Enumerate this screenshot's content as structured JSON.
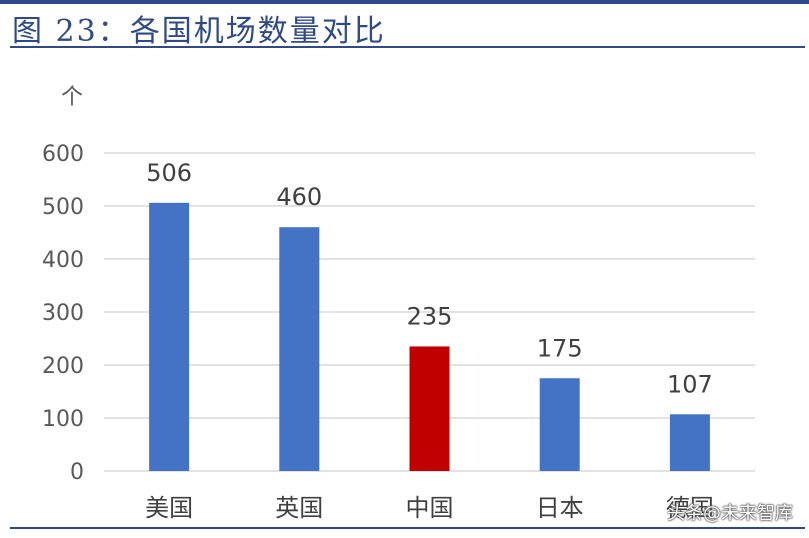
{
  "figure": {
    "title": "图 23：各国机场数量对比",
    "watermark": "头条@未来智库"
  },
  "chart_data": {
    "type": "bar",
    "title": "",
    "unit_label": "个",
    "xlabel": "",
    "ylabel": "",
    "categories": [
      "美国",
      "英国",
      "中国",
      "日本",
      "德国"
    ],
    "values": [
      506,
      460,
      235,
      175,
      107
    ],
    "ylim": [
      0,
      600
    ],
    "yticks": [
      0,
      100,
      200,
      300,
      400,
      500,
      600
    ],
    "grid": true,
    "legend": "none",
    "bar_colors": [
      "#4472c4",
      "#4472c4",
      "#c00000",
      "#4472c4",
      "#4472c4"
    ],
    "grid_color": "#d9d9d9"
  }
}
